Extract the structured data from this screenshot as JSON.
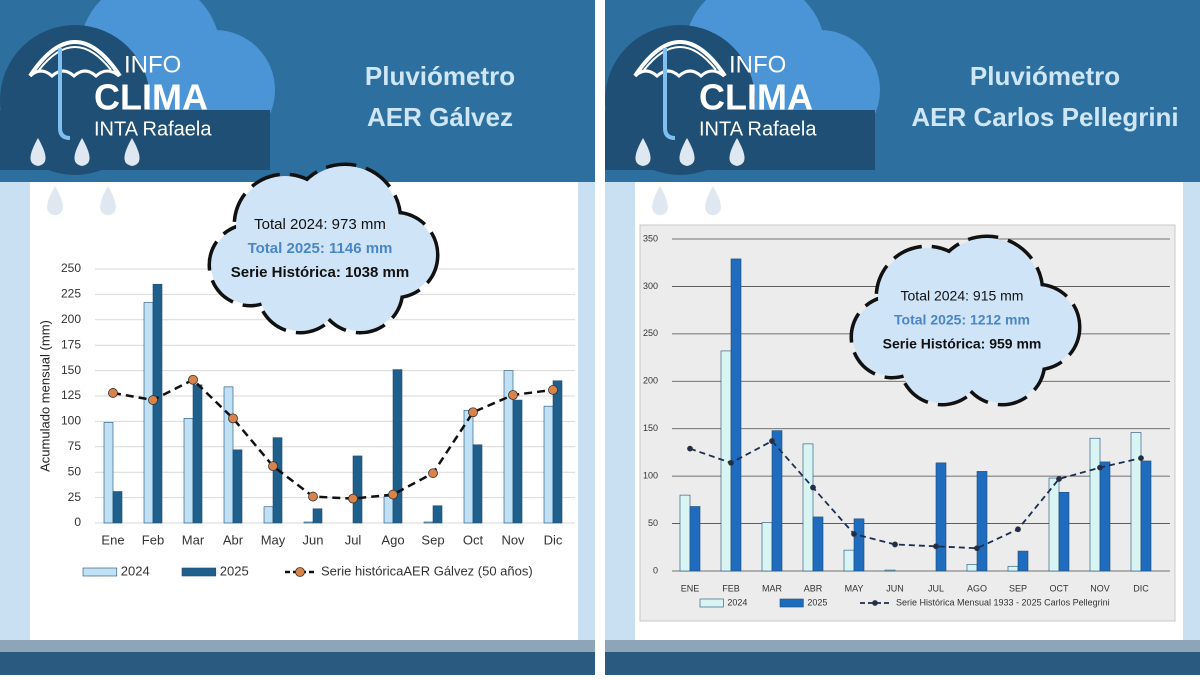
{
  "panels": [
    {
      "brand": [
        "INFO",
        "CLIMA",
        "INTA Rafaela"
      ],
      "title": [
        "Pluviómetro",
        "AER Gálvez"
      ]
    },
    {
      "brand": [
        "INFO",
        "CLIMA",
        "INTA Rafaela"
      ],
      "title": [
        "Pluviómetro",
        "AER Carlos Pellegrini"
      ]
    }
  ],
  "chart_data": [
    {
      "type": "bar",
      "y_label": "Acumulado mensual (mm)",
      "categories": [
        "Ene",
        "Feb",
        "Mar",
        "Abr",
        "May",
        "Jun",
        "Jul",
        "Ago",
        "Sep",
        "Oct",
        "Nov",
        "Dic"
      ],
      "ylim": [
        0,
        250
      ],
      "yticks": [
        0,
        25,
        50,
        75,
        100,
        125,
        150,
        175,
        200,
        225,
        250
      ],
      "grid": true,
      "series": [
        {
          "name": "2024",
          "type": "bar",
          "color": "#bfe0f5",
          "values": [
            99,
            217,
            103,
            134,
            16,
            1,
            0,
            26,
            1,
            111,
            150,
            115
          ]
        },
        {
          "name": "2025",
          "type": "bar",
          "color": "#1f5f8b",
          "values": [
            31,
            235,
            136,
            72,
            84,
            14,
            66,
            151,
            17,
            77,
            121,
            140
          ]
        },
        {
          "name": "Serie históricaAER Gálvez (50 años)",
          "type": "line",
          "color": "#111111",
          "marker_color": "#d9834a",
          "values": [
            128,
            121,
            141,
            103,
            56,
            26,
            24,
            28,
            49,
            109,
            126,
            131
          ]
        }
      ],
      "annotations": [
        {
          "text": "Total 2024: 973 mm",
          "color": "#111111",
          "bold": false
        },
        {
          "text": "Total 2025: 1146 mm",
          "color": "#4a86c5",
          "bold": true
        },
        {
          "text": "Serie Histórica: 1038 mm",
          "color": "#111111",
          "bold": true
        }
      ]
    },
    {
      "type": "bar",
      "categories": [
        "ENE",
        "FEB",
        "MAR",
        "ABR",
        "MAY",
        "JUN",
        "JUL",
        "AGO",
        "SEP",
        "OCT",
        "NOV",
        "DIC"
      ],
      "ylim": [
        0,
        350
      ],
      "yticks": [
        0,
        50,
        100,
        150,
        200,
        250,
        300,
        350
      ],
      "grid": true,
      "series": [
        {
          "name": "2024",
          "type": "bar",
          "color": "#d8f5f4",
          "values": [
            80,
            232,
            51,
            134,
            22,
            1,
            0,
            7,
            5,
            98,
            140,
            146
          ]
        },
        {
          "name": "2025",
          "type": "bar",
          "color": "#1f6cbf",
          "values": [
            68,
            329,
            148,
            57,
            55,
            0,
            114,
            105,
            21,
            83,
            115,
            116
          ]
        },
        {
          "name": "Serie Histórica Mensual 1933 - 2025 Carlos Pellegrini",
          "type": "line",
          "color": "#1c2f4f",
          "marker_color": "#1c2f4f",
          "values": [
            129,
            114,
            137,
            88,
            39,
            28,
            26,
            24,
            44,
            97,
            109,
            119
          ]
        }
      ],
      "annotations": [
        {
          "text": "Total 2024: 915 mm",
          "color": "#111111",
          "bold": false
        },
        {
          "text": "Total 2025:  1212 mm",
          "color": "#4a86c5",
          "bold": true
        },
        {
          "text": "Serie Histórica: 959 mm",
          "color": "#111111",
          "bold": true
        }
      ]
    }
  ]
}
